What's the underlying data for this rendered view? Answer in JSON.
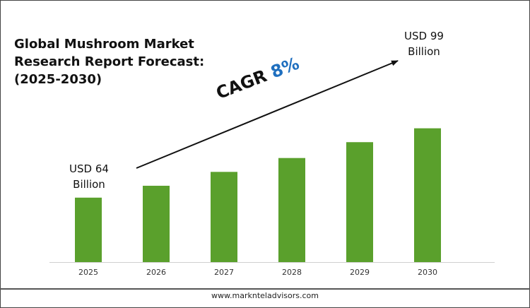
{
  "title_lines": [
    "Global Mushroom Market",
    "Research Report Forecast:",
    "(2025-2030)"
  ],
  "annotations": {
    "start_lines": [
      "USD 64",
      "Billion"
    ],
    "end_lines": [
      "USD 99",
      "Billion"
    ],
    "cagr_label": "CAGR",
    "cagr_value": "8%"
  },
  "footer": "www.marknteladvisors.com",
  "colors": {
    "bar": "#5aa02c",
    "cagr_value": "#1f6fbf",
    "text": "#111111"
  },
  "chart_data": {
    "type": "bar",
    "title": "Global Mushroom Market Research Report Forecast: (2025-2030)",
    "categories": [
      "2025",
      "2026",
      "2027",
      "2028",
      "2029",
      "2030"
    ],
    "values": [
      64,
      70,
      77,
      84,
      92,
      99
    ],
    "xlabel": "",
    "ylabel": "",
    "grid": false,
    "legend": "none"
  }
}
